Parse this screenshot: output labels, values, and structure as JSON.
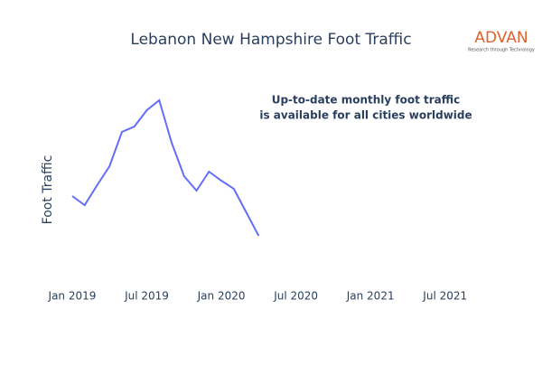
{
  "chart_data": {
    "type": "line",
    "title": "Lebanon New Hampshire Foot Traffic",
    "ylabel": "Foot Traffic",
    "annotation": [
      "Up-to-date monthly foot traffic",
      "is available for all cities worldwide"
    ],
    "logo": {
      "name": "ADVAN",
      "tagline": "Research through Technology"
    },
    "x": [
      "2019-01",
      "2019-02",
      "2019-03",
      "2019-04",
      "2019-05",
      "2019-06",
      "2019-07",
      "2019-08",
      "2019-09",
      "2019-10",
      "2019-11",
      "2019-12",
      "2020-01",
      "2020-02",
      "2020-03",
      "2020-04"
    ],
    "series": [
      {
        "name": "Foot Traffic",
        "color": "#636efa",
        "values": [
          93,
          83,
          105,
          126,
          164,
          170,
          188,
          199,
          152,
          115,
          99,
          120,
          110,
          101,
          75,
          49
        ]
      }
    ],
    "xlim": [
      "2018-10",
      "2021-10"
    ],
    "xticks": [
      {
        "value": "2019-01",
        "label": "Jan 2019"
      },
      {
        "value": "2019-07",
        "label": "Jul 2019"
      },
      {
        "value": "2020-01",
        "label": "Jan 2020"
      },
      {
        "value": "2020-07",
        "label": "Jul 2020"
      },
      {
        "value": "2021-01",
        "label": "Jan 2021"
      },
      {
        "value": "2021-07",
        "label": "Jul 2021"
      }
    ],
    "ylim": [
      0,
      220
    ]
  }
}
